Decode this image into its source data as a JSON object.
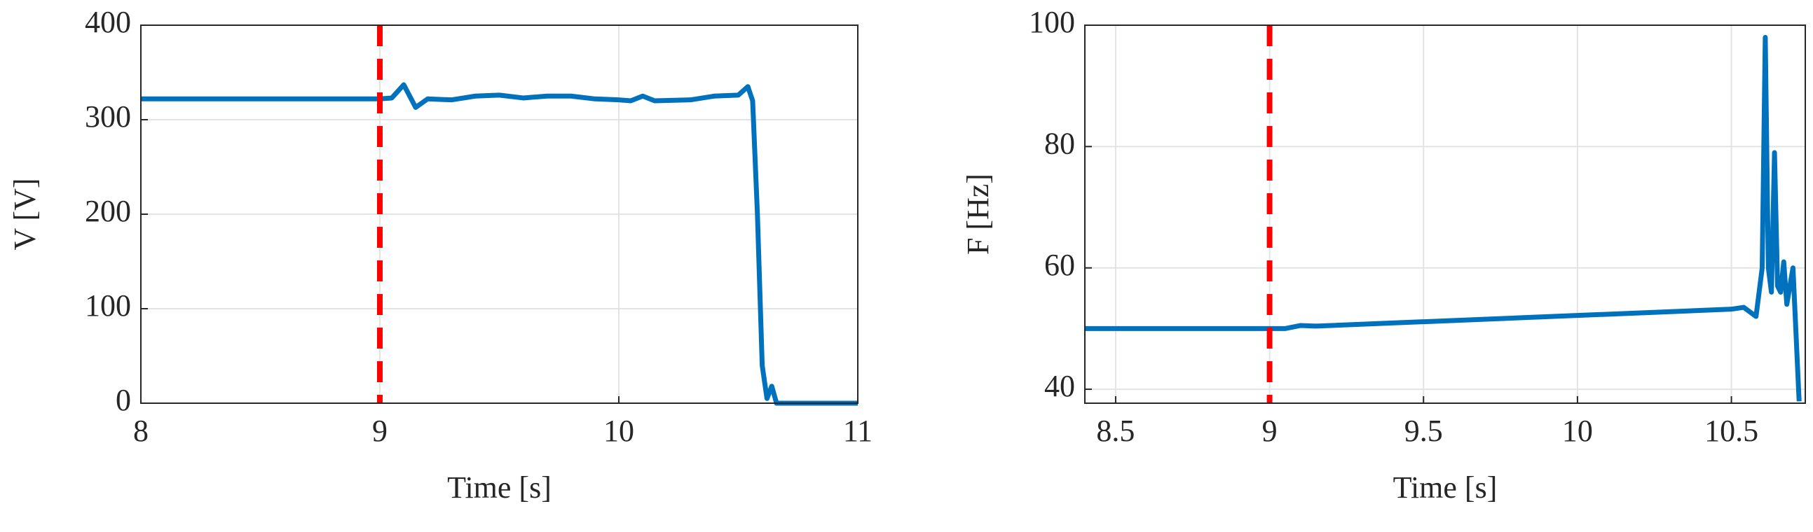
{
  "chart_data": [
    {
      "type": "line",
      "x_label": "Time [s]",
      "y_label": "V [V]",
      "xlim": [
        8,
        11
      ],
      "xticks": [
        8,
        9,
        10,
        11
      ],
      "ylim": [
        0,
        400
      ],
      "yticks": [
        0,
        100,
        200,
        300,
        400
      ],
      "grid": true,
      "event_line": {
        "x": 9,
        "color": "#ff0000"
      },
      "x": [
        8,
        9,
        9.05,
        9.1,
        9.15,
        9.2,
        9.3,
        9.4,
        9.5,
        9.6,
        9.7,
        9.8,
        9.9,
        10,
        10.05,
        10.1,
        10.15,
        10.3,
        10.4,
        10.5,
        10.54,
        10.56,
        10.58,
        10.6,
        10.62,
        10.64,
        10.66,
        11
      ],
      "series": [
        {
          "color": "#0072bd",
          "values": [
            322,
            322,
            323,
            337,
            313,
            322,
            321,
            325,
            326,
            323,
            325,
            325,
            322,
            321,
            320,
            325,
            320,
            321,
            325,
            326,
            335,
            320,
            200,
            40,
            5,
            18,
            0,
            0
          ]
        }
      ]
    },
    {
      "type": "line",
      "x_label": "Time [s]",
      "y_label": "F [Hz]",
      "xlim": [
        8.4,
        10.74
      ],
      "xticks": [
        8.5,
        9,
        9.5,
        10,
        10.5
      ],
      "ylim": [
        37.7,
        100
      ],
      "yticks": [
        40,
        60,
        80,
        100
      ],
      "grid": true,
      "event_line": {
        "x": 9,
        "color": "#ff0000"
      },
      "x": [
        8.4,
        9,
        9.05,
        9.1,
        9.15,
        10.5,
        10.54,
        10.58,
        10.6,
        10.61,
        10.62,
        10.63,
        10.64,
        10.65,
        10.66,
        10.67,
        10.68,
        10.7,
        10.72
      ],
      "series": [
        {
          "color": "#0072bd",
          "values": [
            50,
            50,
            50,
            50.5,
            50.4,
            53.2,
            53.5,
            52,
            60,
            98,
            60,
            56,
            79,
            57,
            56,
            61,
            54,
            60,
            38
          ]
        }
      ]
    }
  ]
}
